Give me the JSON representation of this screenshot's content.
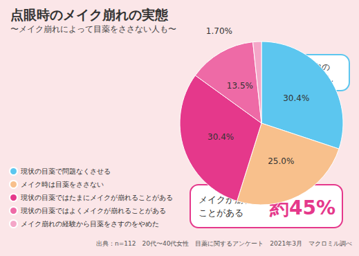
{
  "chart_data": {
    "type": "pie",
    "title": "点眼時のメイク崩れの実態",
    "subtitle": "〜メイク崩れによって目薬をささない人も〜",
    "categories": [
      "現状の目薬で問題なくさせる",
      "メイク時は目薬をささない",
      "現状の目薬ではたまにメイクが崩れることがある",
      "現状の目薬ではよくメイクが崩れることがある",
      "メイク崩れの経験から目薬をさすのをやめた"
    ],
    "values": [
      30.4,
      25.0,
      30.4,
      13.5,
      1.7
    ],
    "value_labels": [
      "30.4%",
      "25.0%",
      "30.4%",
      "13.5%",
      "1.70%"
    ],
    "colors": [
      "#5cc6ef",
      "#f8c08c",
      "#e5388b",
      "#ee6aa6",
      "#f4a6c8"
    ],
    "data_labels": true,
    "legend": "lower left",
    "annotations": [
      "メイク中の\n点眼問題なし",
      "メイクが崩れた\nことがある",
      "約45%"
    ],
    "source": "出典：n=112　20代〜40代女性　目薬に関するアンケート　2021年3月　マクロミル調べ"
  }
}
